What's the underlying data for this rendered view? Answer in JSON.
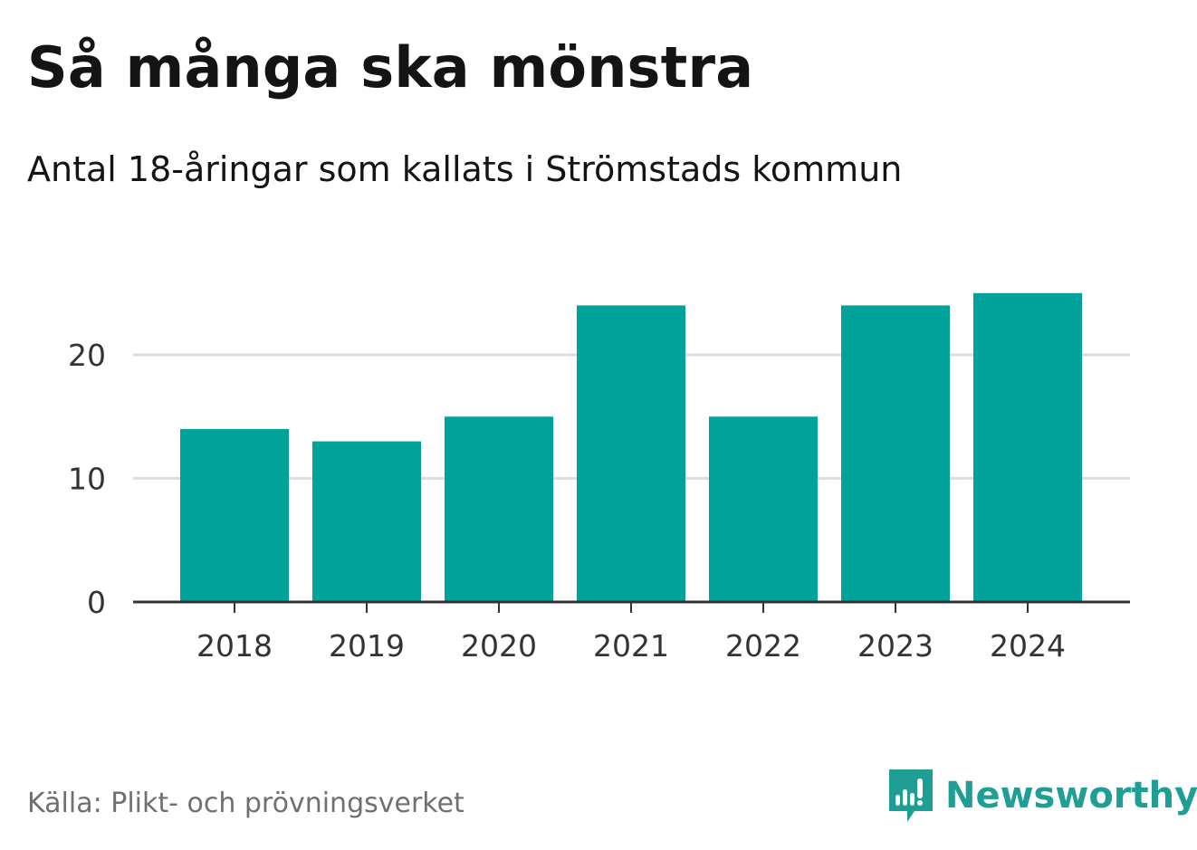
{
  "header": {
    "title": "Så många ska mönstra",
    "subtitle": "Antal 18-åringar som kallats i Strömstads kommun"
  },
  "footer": {
    "source": "Källa: Plikt- och prövningsverket",
    "brand": "Newsworthy",
    "brand_icon": "newsworthy-logo-icon"
  },
  "colors": {
    "bar": "#00a39a",
    "grid": "#dddddd",
    "axis": "#333333",
    "brand": "#1f9e95"
  },
  "chart_data": {
    "type": "bar",
    "title": "Så många ska mönstra",
    "subtitle": "Antal 18-åringar som kallats i Strömstads kommun",
    "categories": [
      "2018",
      "2019",
      "2020",
      "2021",
      "2022",
      "2023",
      "2024"
    ],
    "values": [
      14,
      13,
      15,
      24,
      15,
      24,
      25
    ],
    "xlabel": "",
    "ylabel": "",
    "ylim": [
      0,
      25
    ],
    "yticks": [
      0,
      10,
      20
    ],
    "grid": true,
    "legend": "none"
  }
}
